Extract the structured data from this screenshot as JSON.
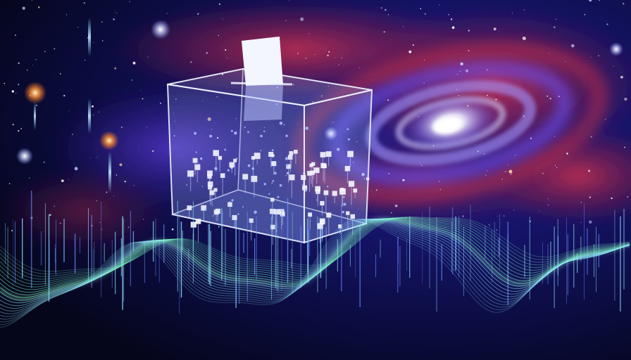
{
  "scene": {
    "subject": "ballot-box",
    "background": "spiral-galaxy",
    "foreground": "sound-waves"
  },
  "colors": {
    "space_dark": "#05061a",
    "space_blue": "#1a1f7a",
    "nebula_red": "#b0243e",
    "nebula_purple": "#4b2aa8",
    "galaxy_core": "#e8e6ff",
    "wave_green": "#7dffc4",
    "wave_blue": "#6f8cff",
    "box_edge": "#dfe6ff",
    "ballot_paper": "#f3f5ff",
    "star_orange": "#ff9a3c"
  }
}
